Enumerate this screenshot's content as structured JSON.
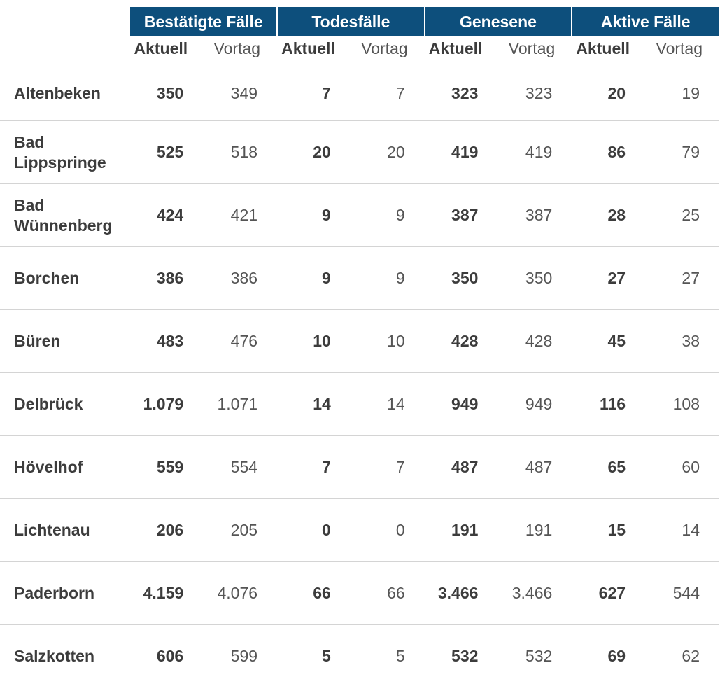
{
  "table": {
    "groups": [
      {
        "label": "Bestätigte Fälle"
      },
      {
        "label": "Todesfälle"
      },
      {
        "label": "Genesene"
      },
      {
        "label": "Aktive Fälle"
      }
    ],
    "subheaders": {
      "aktuell": "Aktuell",
      "vortag": "Vortag"
    },
    "rows": [
      {
        "name": "Altenbeken",
        "values": [
          "350",
          "349",
          "7",
          "7",
          "323",
          "323",
          "20",
          "19"
        ]
      },
      {
        "name": "Bad Lippspringe",
        "values": [
          "525",
          "518",
          "20",
          "20",
          "419",
          "419",
          "86",
          "79"
        ]
      },
      {
        "name": "Bad Wünnenberg",
        "values": [
          "424",
          "421",
          "9",
          "9",
          "387",
          "387",
          "28",
          "25"
        ]
      },
      {
        "name": "Borchen",
        "values": [
          "386",
          "386",
          "9",
          "9",
          "350",
          "350",
          "27",
          "27"
        ]
      },
      {
        "name": "Büren",
        "values": [
          "483",
          "476",
          "10",
          "10",
          "428",
          "428",
          "45",
          "38"
        ]
      },
      {
        "name": "Delbrück",
        "values": [
          "1.079",
          "1.071",
          "14",
          "14",
          "949",
          "949",
          "116",
          "108"
        ]
      },
      {
        "name": "Hövelhof",
        "values": [
          "559",
          "554",
          "7",
          "7",
          "487",
          "487",
          "65",
          "60"
        ]
      },
      {
        "name": "Lichtenau",
        "values": [
          "206",
          "205",
          "0",
          "0",
          "191",
          "191",
          "15",
          "14"
        ]
      },
      {
        "name": "Paderborn",
        "values": [
          "4.159",
          "4.076",
          "66",
          "66",
          "3.466",
          "3.466",
          "627",
          "544"
        ]
      },
      {
        "name": "Salzkotten",
        "values": [
          "606",
          "599",
          "5",
          "5",
          "532",
          "532",
          "69",
          "62"
        ]
      }
    ]
  },
  "colors": {
    "header_bg": "#0d4f7c",
    "header_text": "#ffffff",
    "row_divider": "#d4d4d4",
    "text_main": "#3c3c3c",
    "text_secondary": "#555555"
  }
}
